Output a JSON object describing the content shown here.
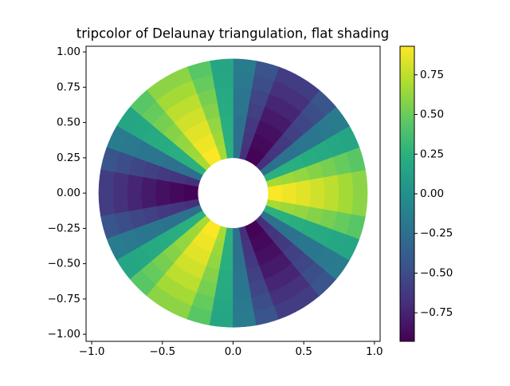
{
  "chart_data": {
    "type": "tripcolor",
    "title": "tripcolor of Delaunay triangulation, flat shading",
    "colormap": "viridis",
    "radii": [
      0.25,
      0.35,
      0.45,
      0.55,
      0.65,
      0.75,
      0.85,
      0.95
    ],
    "values": [
      [
        0.92,
        0.68,
        0.25,
        -0.25,
        -0.68,
        -0.92,
        -0.92,
        -0.68,
        -0.25,
        0.25,
        0.68,
        0.92,
        0.92,
        0.68,
        0.25,
        -0.25,
        -0.68,
        -0.92,
        -0.92,
        -0.68,
        -0.25,
        0.25,
        0.68,
        0.92,
        0.92,
        0.68,
        0.25,
        -0.25,
        -0.68,
        -0.92,
        -0.92,
        -0.68,
        -0.25,
        0.25,
        0.68,
        0.92
      ],
      [
        0.89,
        0.65,
        0.24,
        -0.24,
        -0.65,
        -0.89,
        -0.89,
        -0.65,
        -0.24,
        0.24,
        0.65,
        0.89,
        0.89,
        0.65,
        0.24,
        -0.24,
        -0.65,
        -0.89,
        -0.89,
        -0.65,
        -0.24,
        0.24,
        0.65,
        0.89,
        0.89,
        0.65,
        0.24,
        -0.24,
        -0.65,
        -0.89,
        -0.89,
        -0.65,
        -0.24,
        0.24,
        0.65,
        0.89
      ],
      [
        0.85,
        0.62,
        0.23,
        -0.23,
        -0.62,
        -0.85,
        -0.85,
        -0.62,
        -0.23,
        0.23,
        0.62,
        0.85,
        0.85,
        0.62,
        0.23,
        -0.23,
        -0.62,
        -0.85,
        -0.85,
        -0.62,
        -0.23,
        0.23,
        0.62,
        0.85,
        0.85,
        0.62,
        0.23,
        -0.23,
        -0.62,
        -0.85,
        -0.85,
        -0.62,
        -0.23,
        0.23,
        0.62,
        0.85
      ],
      [
        0.8,
        0.58,
        0.21,
        -0.21,
        -0.58,
        -0.8,
        -0.8,
        -0.58,
        -0.21,
        0.21,
        0.58,
        0.8,
        0.8,
        0.58,
        0.21,
        -0.21,
        -0.58,
        -0.8,
        -0.8,
        -0.58,
        -0.21,
        0.21,
        0.58,
        0.8,
        0.8,
        0.58,
        0.21,
        -0.21,
        -0.58,
        -0.8,
        -0.8,
        -0.58,
        -0.21,
        0.21,
        0.58,
        0.8
      ],
      [
        0.74,
        0.54,
        0.2,
        -0.2,
        -0.54,
        -0.74,
        -0.74,
        -0.54,
        -0.2,
        0.2,
        0.54,
        0.74,
        0.74,
        0.54,
        0.2,
        -0.2,
        -0.54,
        -0.74,
        -0.74,
        -0.54,
        -0.2,
        0.2,
        0.54,
        0.74,
        0.74,
        0.54,
        0.2,
        -0.2,
        -0.54,
        -0.74,
        -0.74,
        -0.54,
        -0.2,
        0.2,
        0.54,
        0.74
      ],
      [
        0.67,
        0.49,
        0.18,
        -0.18,
        -0.49,
        -0.67,
        -0.67,
        -0.49,
        -0.18,
        0.18,
        0.49,
        0.67,
        0.67,
        0.49,
        0.18,
        -0.18,
        -0.49,
        -0.67,
        -0.67,
        -0.49,
        -0.18,
        0.18,
        0.49,
        0.67,
        0.67,
        0.49,
        0.18,
        -0.18,
        -0.49,
        -0.67,
        -0.67,
        -0.49,
        -0.18,
        0.18,
        0.49,
        0.67
      ],
      [
        0.6,
        0.44,
        0.16,
        -0.16,
        -0.44,
        -0.6,
        -0.6,
        -0.44,
        -0.16,
        0.16,
        0.44,
        0.6,
        0.6,
        0.44,
        0.16,
        -0.16,
        -0.44,
        -0.6,
        -0.6,
        -0.44,
        -0.16,
        0.16,
        0.44,
        0.6,
        0.6,
        0.44,
        0.16,
        -0.16,
        -0.44,
        -0.6,
        -0.6,
        -0.44,
        -0.16,
        0.16,
        0.44,
        0.6
      ]
    ],
    "xlim": [
      -1.04,
      1.04
    ],
    "ylim": [
      -1.05,
      1.04
    ],
    "xticks": [
      {
        "value": -1.0,
        "label": "−1.0"
      },
      {
        "value": -0.5,
        "label": "−0.5"
      },
      {
        "value": 0.0,
        "label": "0.0"
      },
      0.5,
      {
        "value": 1.0,
        "label": "1.0"
      }
    ],
    "yticks": [
      {
        "value": -1.0,
        "label": "−1.00"
      },
      {
        "value": -0.75,
        "label": "−0.75"
      },
      {
        "value": -0.5,
        "label": "−0.50"
      },
      {
        "value": -0.25,
        "label": "−0.25"
      },
      {
        "value": 0.0,
        "label": "0.00"
      },
      {
        "value": 0.25,
        "label": "0.25"
      },
      {
        "value": 0.5,
        "label": "0.50"
      },
      0.75,
      {
        "value": 1.0,
        "label": "1.00"
      }
    ],
    "clim": [
      -0.93,
      0.93
    ],
    "cticks": [
      {
        "value": -0.75,
        "label": "−0.75"
      },
      {
        "value": -0.5,
        "label": "−0.50"
      },
      {
        "value": -0.25,
        "label": "−0.25"
      },
      {
        "value": 0.0,
        "label": "0.00"
      },
      0.25,
      {
        "value": 0.5,
        "label": "0.50"
      },
      0.75
    ]
  }
}
